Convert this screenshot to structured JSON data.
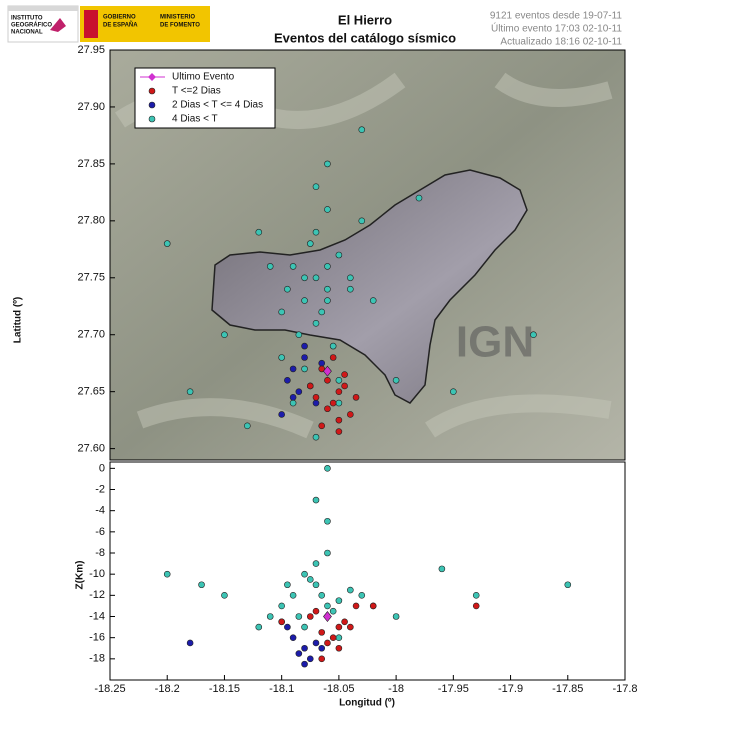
{
  "header": {
    "ign_logo": [
      "INSTITUTO",
      "GEOGRÁFICO",
      "NACIONAL"
    ],
    "gov_logo": [
      "GOBIERNO",
      "DE ESPAÑA"
    ],
    "ministry_logo": [
      "MINISTERIO",
      "DE FOMENTO"
    ],
    "title": "El Hierro",
    "subtitle": "Eventos del catálogo sísmico",
    "info": [
      "9121 eventos desde 19-07-11",
      "Último evento 17:03 02-10-11",
      "Actualizado   18:16  02-10-11"
    ]
  },
  "chart_data": [
    {
      "type": "scatter",
      "ylabel": "Latitud (º)",
      "watermark": "IGN",
      "legend": "upper left",
      "xlim": [
        -18.25,
        -17.8
      ],
      "ylim": [
        27.59,
        27.95
      ],
      "yticks": [
        {
          "value": 27.6,
          "label": "27.60"
        },
        27.65,
        {
          "value": 27.7,
          "label": "27.70"
        },
        27.75,
        {
          "value": 27.8,
          "label": "27.80"
        },
        27.85,
        {
          "value": 27.9,
          "label": "27.90"
        },
        27.95
      ],
      "series": [
        {
          "name": "4 Dias <  T",
          "color": "#3cc4b4",
          "marker": "circle",
          "x": [
            -18.09,
            -18.07,
            -18.06,
            -18.08,
            -18.05,
            -18.1,
            -18.04,
            -18.07,
            -18.06,
            -18.085,
            -18.075,
            -18.065,
            -18.055,
            -18.095,
            -18.03,
            -18.11,
            -18.07,
            -18.06,
            -18.08,
            -18.05,
            -18.12,
            -18.02,
            -18.15,
            -18.2,
            -18.0,
            -17.95,
            -18.13,
            -18.09,
            -18.07,
            -18.06,
            -18.04,
            -18.1,
            -17.98,
            -18.18,
            -17.88,
            -18.03,
            -18.08,
            -18.06,
            -18.05,
            -18.07
          ],
          "values": [
            27.76,
            27.75,
            27.74,
            27.73,
            27.77,
            27.72,
            27.75,
            27.79,
            27.81,
            27.7,
            27.78,
            27.72,
            27.69,
            27.74,
            27.8,
            27.76,
            27.83,
            27.85,
            27.67,
            27.66,
            27.79,
            27.73,
            27.7,
            27.78,
            27.66,
            27.65,
            27.62,
            27.64,
            27.71,
            27.76,
            27.74,
            27.68,
            27.82,
            27.65,
            27.7,
            27.88,
            27.75,
            27.73,
            27.64,
            27.61
          ]
        },
        {
          "name": "2 Dias  < T <= 4 Dias",
          "color": "#1c1caa",
          "marker": "circle",
          "x": [
            -18.08,
            -18.09,
            -18.075,
            -18.085,
            -18.07,
            -18.095,
            -18.08,
            -18.1,
            -18.065,
            -18.09
          ],
          "values": [
            27.68,
            27.67,
            27.655,
            27.65,
            27.64,
            27.66,
            27.69,
            27.63,
            27.675,
            27.645
          ]
        },
        {
          "name": "T <=2 Dias",
          "color": "#d01818",
          "marker": "circle",
          "x": [
            -18.06,
            -18.05,
            -18.055,
            -18.045,
            -18.065,
            -18.07,
            -18.04,
            -18.05,
            -18.06,
            -18.055,
            -18.075,
            -18.035,
            -18.05,
            -18.065,
            -18.045
          ],
          "values": [
            27.66,
            27.65,
            27.64,
            27.655,
            27.67,
            27.645,
            27.63,
            27.625,
            27.635,
            27.68,
            27.655,
            27.645,
            27.615,
            27.62,
            27.665
          ]
        },
        {
          "name": "Ultimo Evento",
          "color": "#d030d0",
          "marker": "diamond",
          "x": [
            -18.06
          ],
          "values": [
            27.668
          ]
        }
      ]
    },
    {
      "type": "scatter",
      "xlabel": "Longitud (º)",
      "ylabel": "Z(Km)",
      "xlim": [
        -18.25,
        -17.8
      ],
      "ylim": [
        -20,
        0.6
      ],
      "xticks": [
        -18.25,
        -18.2,
        -18.15,
        -18.1,
        -18.05,
        -18,
        -17.95,
        -17.9,
        -17.85,
        -17.8
      ],
      "yticks": [
        0,
        -2,
        -4,
        -6,
        -8,
        -10,
        -12,
        -14,
        -16,
        -18
      ],
      "series": [
        {
          "color": "#3cc4b4",
          "marker": "circle",
          "x": [
            -18.09,
            -18.07,
            -18.06,
            -18.08,
            -18.05,
            -18.1,
            -18.04,
            -18.07,
            -18.06,
            -18.085,
            -18.075,
            -18.065,
            -18.055,
            -18.095,
            -18.03,
            -18.11,
            -18.2,
            -18.15,
            -17.96,
            -17.93,
            -18.12,
            -18.02,
            -18.07,
            -18.06,
            -18.08,
            -18.05,
            -18.0,
            -18.17,
            -17.85,
            -18.06
          ],
          "values": [
            -12,
            -11,
            -13,
            -10,
            -12.5,
            -13,
            -11.5,
            -9,
            -8,
            -14,
            -10.5,
            -12,
            -13.5,
            -11,
            -12,
            -14,
            -10,
            -12,
            -9.5,
            -12,
            -15,
            -13,
            -3,
            -5,
            -15,
            -16,
            -14,
            -11,
            -11,
            0
          ]
        },
        {
          "color": "#1c1caa",
          "marker": "circle",
          "x": [
            -18.08,
            -18.09,
            -18.075,
            -18.085,
            -18.07,
            -18.095,
            -18.08,
            -18.18,
            -18.065,
            -18.1
          ],
          "values": [
            -17,
            -16,
            -18,
            -17.5,
            -16.5,
            -15,
            -18.5,
            -16.5,
            -17,
            -14.5
          ]
        },
        {
          "color": "#d01818",
          "marker": "circle",
          "x": [
            -18.06,
            -18.05,
            -18.055,
            -18.045,
            -18.065,
            -18.07,
            -18.04,
            -18.05,
            -18.06,
            -17.93,
            -18.075,
            -18.035,
            -18.1,
            -18.065,
            -18.02
          ],
          "values": [
            -14,
            -15,
            -16,
            -14.5,
            -15.5,
            -13.5,
            -15,
            -17,
            -16.5,
            -13,
            -14,
            -13,
            -14.5,
            -18,
            -13
          ]
        },
        {
          "color": "#d030d0",
          "marker": "diamond",
          "x": [
            -18.06
          ],
          "values": [
            -14
          ]
        }
      ]
    }
  ]
}
